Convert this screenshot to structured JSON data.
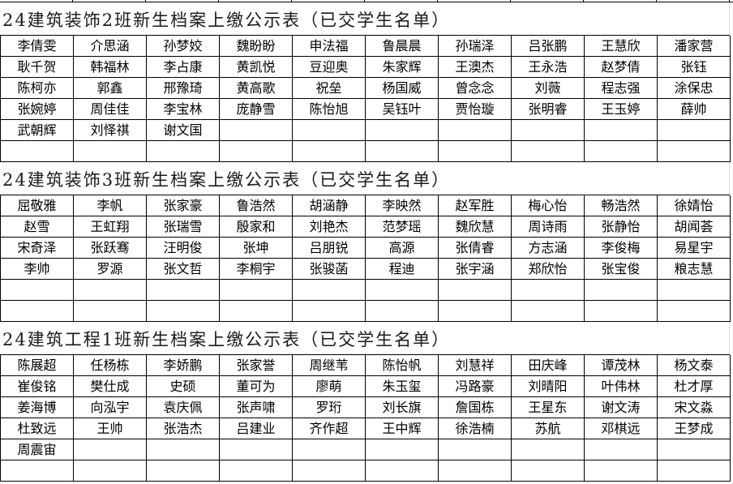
{
  "sections": [
    {
      "title": "24建筑装饰2班新生档案上缴公示表（已交学生名单）",
      "rows": [
        [
          "李倩雯",
          "介思涵",
          "孙梦姣",
          "魏盼盼",
          "申法福",
          "鲁晨晨",
          "孙瑞泽",
          "吕张鹏",
          "王慧欣",
          "潘家营"
        ],
        [
          "耿千贺",
          "韩福林",
          "李占康",
          "黄凯悦",
          "豆迎奥",
          "朱家辉",
          "王澳杰",
          "王永浩",
          "赵梦倩",
          "张钰"
        ],
        [
          "陈柯亦",
          "郭鑫",
          "邢豫琦",
          "黄高歌",
          "祝垒",
          "杨国威",
          "曾念念",
          "刘薇",
          "程志强",
          "涂保忠"
        ],
        [
          "张婉婷",
          "周佳佳",
          "李宝林",
          "庞静雪",
          "陈怡旭",
          "吴钰叶",
          "贾怡璇",
          "张明睿",
          "王玉婷",
          "薛帅"
        ],
        [
          "武朝辉",
          "刘怿祺",
          "谢文国",
          "",
          "",
          "",
          "",
          "",
          "",
          ""
        ],
        [
          "",
          "",
          "",
          "",
          "",
          "",
          "",
          "",
          "",
          ""
        ]
      ]
    },
    {
      "title": "24建筑装饰3班新生档案上缴公示表（已交学生名单）",
      "rows": [
        [
          "屈敬雅",
          "李帆",
          "张家豪",
          "鲁浩然",
          "胡涵静",
          "李映然",
          "赵军胜",
          "梅心怡",
          "畅浩然",
          "徐婧怡"
        ],
        [
          "赵雪",
          "王虹翔",
          "张瑞雪",
          "殷家和",
          "刘艳杰",
          "范梦瑶",
          "魏欣慧",
          "周诗雨",
          "张静怡",
          "胡闻荟"
        ],
        [
          "宋奇泽",
          "张跃骞",
          "汪明俊",
          "张坤",
          "吕朋锐",
          "高源",
          "张倩睿",
          "方志涵",
          "李俊梅",
          "易星宇"
        ],
        [
          "李帅",
          "罗源",
          "张文哲",
          "李桐宇",
          "张骏菡",
          "程迪",
          "张宇涵",
          "郑欣怡",
          "张宝俊",
          "粮志慧"
        ],
        [
          "",
          "",
          "",
          "",
          "",
          "",
          "",
          "",
          "",
          ""
        ],
        [
          "",
          "",
          "",
          "",
          "",
          "",
          "",
          "",
          "",
          ""
        ]
      ]
    },
    {
      "title": "24建筑工程1班新生档案上缴公示表（已交学生名单）",
      "rows": [
        [
          "陈展超",
          "任杨栋",
          "李娇鹏",
          "张家誉",
          "周继苇",
          "陈怡帆",
          "刘慧祥",
          "田庆峰",
          "谭茂林",
          "杨文泰"
        ],
        [
          "崔俊铭",
          "樊仕成",
          "史硕",
          "董可为",
          "廖萌",
          "朱玉玺",
          "冯路豪",
          "刘晴阳",
          "叶伟林",
          "杜才厚"
        ],
        [
          "姜海博",
          "向泓宇",
          "袁庆佩",
          "张声啸",
          "罗珩",
          "刘长旗",
          "詹国栋",
          "王星东",
          "谢文涛",
          "宋文淼"
        ],
        [
          "杜致远",
          "王帅",
          "张浩杰",
          "吕建业",
          "齐作超",
          "王中辉",
          "徐浩楠",
          "苏航",
          "邓棋远",
          "王梦成"
        ],
        [
          "周震宙",
          "",
          "",
          "",
          "",
          "",
          "",
          "",
          "",
          ""
        ],
        [
          "",
          "",
          "",
          "",
          "",
          "",
          "",
          "",
          "",
          ""
        ]
      ]
    }
  ]
}
